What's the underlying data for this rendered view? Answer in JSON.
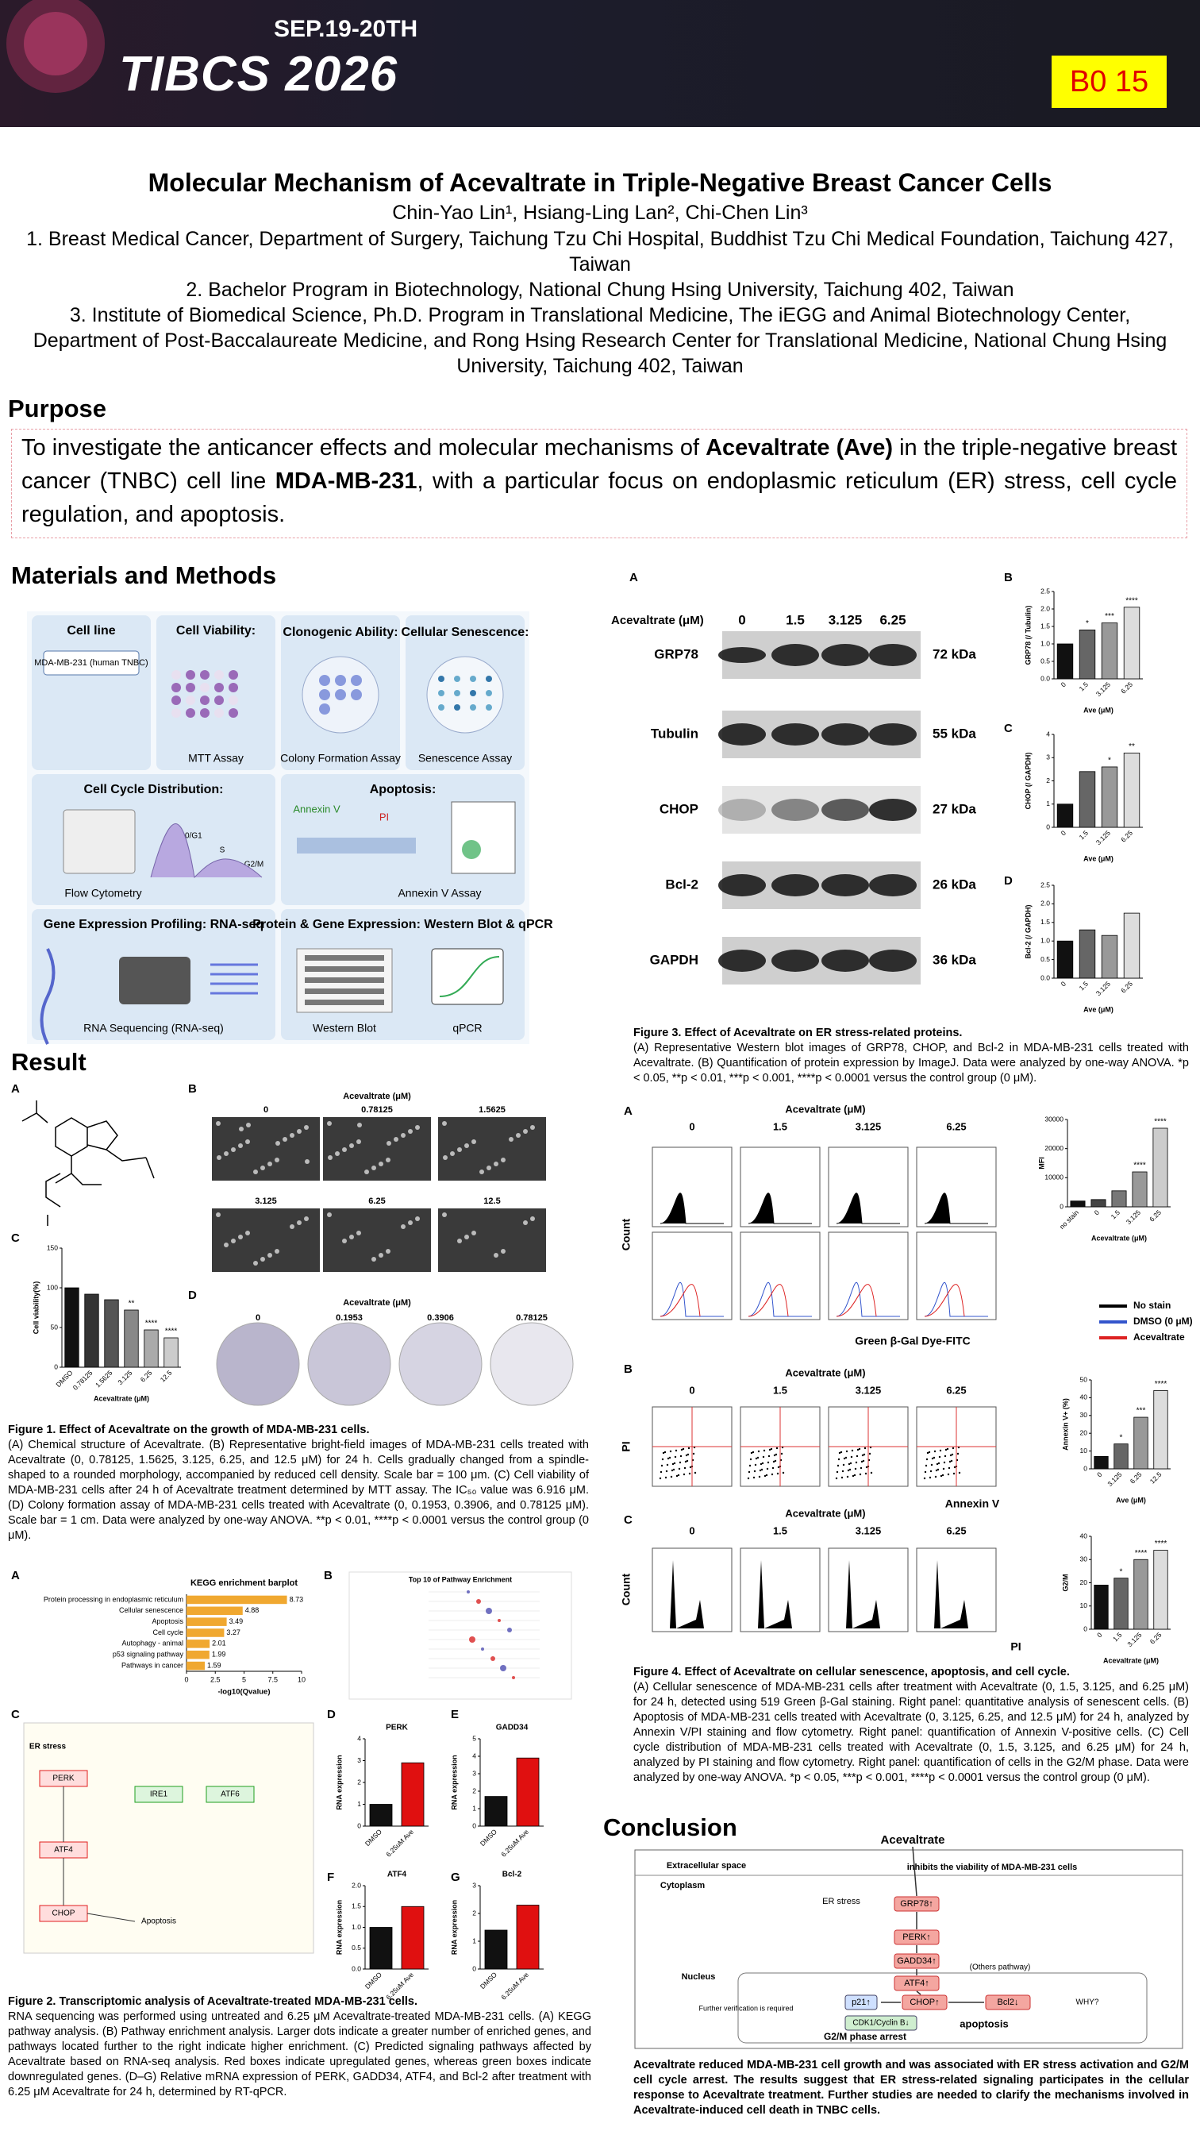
{
  "header": {
    "date": "SEP.19-20TH",
    "event": "TIBCS 2026",
    "badge": "B0 15"
  },
  "title": "Molecular Mechanism of Acevaltrate in Triple-Negative Breast Cancer Cells",
  "authors": "Chin-Yao Lin¹, Hsiang-Ling Lan², Chi-Chen Lin³",
  "affiliations": [
    "1. Breast Medical Cancer, Department of Surgery, Taichung Tzu Chi Hospital, Buddhist Tzu Chi Medical Foundation, Taichung 427, Taiwan",
    "2. Bachelor Program in Biotechnology, National Chung Hsing University, Taichung 402, Taiwan",
    "3. Institute of Biomedical Science, Ph.D. Program in Translational Medicine, The iEGG and Animal Biotechnology Center, Department of Post-Baccalaureate Medicine, and Rong Hsing Research Center for Translational Medicine, National Chung Hsing University, Taichung 402, Taiwan"
  ],
  "purpose": {
    "heading": "Purpose",
    "text": [
      "To investigate the anticancer effects and molecular mechanisms of ",
      "Acevaltrate (Ave)",
      " in the triple-negative breast cancer (TNBC) cell line ",
      "MDA-MB-231",
      ", with a particular focus on endoplasmic reticulum (ER) stress, cell cycle regulation, and apoptosis."
    ]
  },
  "methods": {
    "heading": "Materials and Methods",
    "panels": [
      {
        "title": "Cell line",
        "items": [
          "MDA-MB-231 (human TNBC)"
        ]
      },
      {
        "title": "Cell Viability:",
        "items": [
          "MTT Assay"
        ]
      },
      {
        "title": "Clonogenic Ability:",
        "items": [
          "Colony Formation Assay"
        ]
      },
      {
        "title": "Cellular Senescence:",
        "items": [
          "Senescence Assay"
        ]
      },
      {
        "title": "Cell Cycle Distribution:",
        "items": [
          "Flow Cytometry",
          "G0/G1",
          "S",
          "G2/M"
        ]
      },
      {
        "title": "Apoptosis:",
        "items": [
          "Annexin V Assay",
          "Annexin V",
          "PI"
        ]
      },
      {
        "title": "Gene Expression Profiling: RNA-seq",
        "items": [
          "RNA Sequencing (RNA-seq)"
        ]
      },
      {
        "title": "Protein & Gene Expression: Western Blot & qPCR",
        "items": [
          "Western Blot",
          "qPCR"
        ]
      }
    ]
  },
  "result": {
    "heading": "Result"
  },
  "fig1": {
    "letters": [
      "A",
      "B",
      "C",
      "D"
    ],
    "b_axis": "Acevaltrate (μM)",
    "b_doses": [
      "0",
      "0.78125",
      "1.5625",
      "3.125",
      "6.25",
      "12.5"
    ],
    "d_axis": "Acevaltrate (μM)",
    "d_doses": [
      "0",
      "0.1953",
      "0.3906",
      "0.78125"
    ],
    "caption_title": "Figure 1. Effect of Acevaltrate on the growth of MDA-MB-231 cells.",
    "caption": "(A) Chemical structure of Acevaltrate. (B) Representative bright-field images of MDA-MB-231 cells treated with Acevaltrate (0, 0.78125, 1.5625, 3.125, 6.25, and 12.5 μM) for 24 h. Cells gradually changed from a spindle-shaped to a rounded morphology, accompanied by reduced cell density. Scale bar = 100 μm. (C) Cell viability of MDA-MB-231 cells after 24 h of Acevaltrate treatment determined by MTT assay. The IC₅₀ value was 6.916 μM. (D) Colony formation assay of MDA-MB-231 cells treated with Acevaltrate (0, 0.1953, 0.3906, and 0.78125 μM). Scale bar = 1 cm. Data were analyzed by one-way ANOVA. **p < 0.01, ****p < 0.0001 versus the control group (0 μM)."
  },
  "fig2": {
    "letters": [
      "A",
      "B",
      "C",
      "D",
      "E",
      "F",
      "G"
    ],
    "b_title": "Top 10 of Pathway Enrichment",
    "c_labels": [
      "ER stress",
      "PERK",
      "IRE1",
      "ATF6",
      "ATF4",
      "CHOP",
      "Apoptosis"
    ],
    "caption_title": "Figure 2. Transcriptomic analysis of Acevaltrate-treated MDA-MB-231 cells.",
    "caption": "RNA sequencing was performed using untreated and 6.25 μM Acevaltrate-treated MDA-MB-231 cells. (A) KEGG pathway analysis. (B) Pathway enrichment analysis. Larger dots indicate a greater number of enriched genes, and pathways located further to the right indicate higher enrichment. (C) Predicted signaling pathways affected by Acevaltrate based on RNA-seq analysis. Red boxes indicate upregulated genes, whereas green boxes indicate downregulated genes. (D–G) Relative mRNA expression of PERK, GADD34, ATF4, and Bcl-2 after treatment with 6.25 μM Acevaltrate for 24 h, determined by RT-qPCR."
  },
  "fig3": {
    "letters": [
      "A",
      "B",
      "C",
      "D"
    ],
    "axis": "Acevaltrate (μM)",
    "doses": [
      "0",
      "1.5",
      "3.125",
      "6.25"
    ],
    "proteins": [
      "GRP78",
      "Tubulin",
      "CHOP",
      "Bcl-2",
      "GAPDH"
    ],
    "sizes": [
      "72 kDa",
      "55 kDa",
      "27 kDa",
      "26 kDa",
      "36 kDa"
    ],
    "caption_title": "Figure 3. Effect of Acevaltrate on ER stress-related proteins.",
    "caption": "(A) Representative Western blot images of GRP78, CHOP, and Bcl-2 in MDA-MB-231 cells treated with Acevaltrate. (B) Quantification of protein expression by ImageJ. Data were analyzed by one-way ANOVA. *p < 0.05, **p < 0.01, ***p < 0.001, ****p < 0.0001 versus the control group (0 μM)."
  },
  "fig4": {
    "letters": [
      "A",
      "B",
      "C"
    ],
    "axis": "Acevaltrate (μM)",
    "doses": [
      "0",
      "1.5",
      "3.125",
      "6.25"
    ],
    "ylabels": [
      "Count",
      "PI",
      "Count"
    ],
    "xlabels": [
      "Green β-Gal Dye-FITC",
      "Annexin V",
      "PI"
    ],
    "legend": [
      "No stain",
      "DMSO (0 μM)",
      "Acevaltrate"
    ],
    "caption_title": "Figure 4. Effect of Acevaltrate on cellular senescence, apoptosis, and cell cycle.",
    "caption": "(A) Cellular senescence of MDA-MB-231 cells after treatment with Acevaltrate (0, 1.5, 3.125, and 6.25 μM) for 24 h, detected using 519 Green β-Gal staining. Right panel: quantitative analysis of senescent cells. (B) Apoptosis of MDA-MB-231 cells treated with Acevaltrate (0, 3.125, 6.25, and 12.5 μM) for 24 h, analyzed by Annexin V/PI staining and flow cytometry. Right panel: quantification of Annexin V-positive cells. (C) Cell cycle distribution of MDA-MB-231 cells treated with Acevaltrate (0, 1.5, 3.125, and 6.25 μM) for 24 h, analyzed by PI staining and flow cytometry. Right panel: quantification of cells in the G2/M phase. Data were analyzed by one-way ANOVA. *p < 0.05, ***p < 0.001, ****p < 0.0001 versus the control group (0 μM)."
  },
  "conclusion": {
    "heading": "Conclusion",
    "labels": [
      "Acevaltrate",
      "Extracellular space",
      "inhibits the viability of MDA-MB-231 cells",
      "Cytoplasm",
      "ER stress",
      "GRP78↑",
      "PERK↑",
      "GADD34↑",
      "ATF4↑",
      "Nucleus",
      "CHOP↑",
      "Bcl2↓",
      "p21↑",
      "CDK1/Cyclin B↓",
      "G2/M phase arrest",
      "apoptosis",
      "Further verification is required",
      "(Others pathway)",
      "WHY?"
    ],
    "text": "Acevaltrate reduced MDA-MB-231 cell growth and was associated with ER stress activation and G2/M cell cycle arrest. The results suggest that ER stress-related signaling participates in the cellular response to Acevaltrate treatment. Further studies are needed to clarify the mechanisms involved in Acevaltrate-induced cell death in TNBC cells."
  },
  "chart_data": [
    {
      "type": "bar",
      "ylabel": "Cell viability(%)",
      "xlabel": "Acevaltrate (μM)",
      "categories": [
        "DMSO",
        "0.78125",
        "1.5625",
        "3.125",
        "6.25",
        "12.5"
      ],
      "values": [
        100,
        92,
        85,
        72,
        47,
        37
      ],
      "annotations": [
        null,
        null,
        null,
        "**",
        "****",
        "****"
      ],
      "colors": [
        "#111111",
        "#333333",
        "#555555",
        "#888888",
        "#aaaaaa",
        "#cccccc"
      ],
      "ylim": [
        0,
        150
      ],
      "yticks": [
        0,
        50,
        100,
        150
      ]
    },
    {
      "type": "bar",
      "ylabel": "GRP78 (/ Tubulin)",
      "xlabel": "Ave (μM)",
      "categories": [
        "0",
        "1.5",
        "3.125",
        "6.25"
      ],
      "values": [
        1.0,
        1.4,
        1.6,
        2.05
      ],
      "annotations": [
        null,
        "*",
        "***",
        "****"
      ],
      "colors": [
        "#111111",
        "#666666",
        "#999999",
        "#dddddd"
      ],
      "ylim": [
        0,
        2.5
      ],
      "yticks": [
        {
          "value": 0,
          "label": "0.0"
        },
        0.5,
        {
          "value": 1,
          "label": "1.0"
        },
        1.5,
        {
          "value": 2,
          "label": "2.0"
        },
        2.5
      ]
    },
    {
      "type": "bar",
      "ylabel": "CHOP (/ GAPDH)",
      "xlabel": "Ave (μM)",
      "categories": [
        "0",
        "1.5",
        "3.125",
        "6.25"
      ],
      "values": [
        1.0,
        2.4,
        2.6,
        3.2
      ],
      "annotations": [
        null,
        null,
        "*",
        "**"
      ],
      "colors": [
        "#111111",
        "#666666",
        "#999999",
        "#dddddd"
      ],
      "ylim": [
        0,
        4
      ],
      "yticks": [
        0,
        1,
        2,
        3,
        4
      ]
    },
    {
      "type": "bar",
      "ylabel": "Bcl-2 (/ GAPDH)",
      "xlabel": "Ave (μM)",
      "categories": [
        "0",
        "1.5",
        "3.125",
        "6.25"
      ],
      "values": [
        1.0,
        1.3,
        1.15,
        1.75
      ],
      "colors": [
        "#111111",
        "#666666",
        "#999999",
        "#dddddd"
      ],
      "ylim": [
        0,
        2.5
      ],
      "yticks": [
        {
          "value": 0,
          "label": "0.0"
        },
        0.5,
        {
          "value": 1,
          "label": "1.0"
        },
        1.5,
        {
          "value": 2,
          "label": "2.0"
        },
        2.5
      ]
    },
    {
      "type": "hbar",
      "title": "KEGG enrichment barplot",
      "xlabel": "-log10(Qvalue)",
      "categories": [
        "Protein processing in endoplasmic reticulum",
        "Cellular senescence",
        "Apoptosis",
        "Cell cycle",
        "Autophagy - animal",
        "p53 signaling pathway",
        "Pathways in cancer"
      ],
      "values": [
        8.73,
        4.88,
        3.49,
        3.27,
        2.01,
        1.99,
        1.59
      ],
      "color": "#f0a830",
      "xlim": [
        0,
        10
      ],
      "xticks": [
        0,
        2.5,
        5,
        7.5,
        10
      ]
    },
    {
      "type": "bar",
      "title": "PERK",
      "ylabel": "RNA expression",
      "categories": [
        "DMSO",
        "6.25uM Ave"
      ],
      "values": [
        1.0,
        2.9
      ],
      "colors": [
        "#111111",
        "#e01010"
      ],
      "ylim": [
        0,
        4
      ],
      "yticks": [
        0,
        1,
        2,
        3,
        4
      ]
    },
    {
      "type": "bar",
      "title": "GADD34",
      "ylabel": "RNA expression",
      "categories": [
        "DMSO",
        "6.25uM Ave"
      ],
      "values": [
        1.7,
        3.9
      ],
      "colors": [
        "#111111",
        "#e01010"
      ],
      "ylim": [
        0,
        5
      ],
      "yticks": [
        0,
        1,
        2,
        3,
        4,
        5
      ]
    },
    {
      "type": "bar",
      "title": "ATF4",
      "ylabel": "RNA expression",
      "categories": [
        "DMSO",
        "6.25uM Ave"
      ],
      "values": [
        1.0,
        1.5
      ],
      "colors": [
        "#111111",
        "#e01010"
      ],
      "ylim": [
        0,
        2
      ],
      "yticks": [
        {
          "value": 0,
          "label": "0.0"
        },
        0.5,
        {
          "value": 1,
          "label": "1.0"
        },
        1.5,
        {
          "value": 2,
          "label": "2.0"
        }
      ]
    },
    {
      "type": "bar",
      "title": "Bcl-2",
      "ylabel": "RNA expression",
      "categories": [
        "DMSO",
        "6.25uM Ave"
      ],
      "values": [
        1.4,
        2.3
      ],
      "colors": [
        "#111111",
        "#e01010"
      ],
      "ylim": [
        0,
        3
      ],
      "yticks": [
        0,
        1,
        2,
        3
      ]
    },
    {
      "type": "bar",
      "ylabel": "MFI",
      "xlabel": "Acevaltrate (μM)",
      "categories": [
        "no stain",
        "0",
        "1.5",
        "3.125",
        "6.25"
      ],
      "values": [
        2000,
        2500,
        5500,
        12000,
        27000
      ],
      "annotations": [
        null,
        null,
        null,
        "****",
        "****"
      ],
      "colors": [
        "#111111",
        "#444444",
        "#777777",
        "#999999",
        "#cccccc"
      ],
      "ylim": [
        0,
        30000
      ],
      "yticks": [
        0,
        10000,
        20000,
        30000
      ]
    },
    {
      "type": "bar",
      "ylabel": "Annexin V+ (%)",
      "xlabel": "Ave (μM)",
      "categories": [
        "0",
        "3.125",
        "6.25",
        "12.5"
      ],
      "values": [
        7,
        14,
        29,
        44
      ],
      "annotations": [
        null,
        "*",
        "***",
        "****"
      ],
      "colors": [
        "#111111",
        "#666666",
        "#999999",
        "#dddddd"
      ],
      "ylim": [
        0,
        50
      ],
      "yticks": [
        0,
        10,
        20,
        30,
        40,
        50
      ]
    },
    {
      "type": "bar",
      "ylabel": "G2/M",
      "xlabel": "Acevaltrate (μM)",
      "categories": [
        "0",
        "1.5",
        "3.125",
        "6.25"
      ],
      "values": [
        19,
        22,
        30,
        34
      ],
      "annotations": [
        null,
        "*",
        "****",
        "****"
      ],
      "colors": [
        "#111111",
        "#666666",
        "#999999",
        "#dddddd"
      ],
      "ylim": [
        0,
        40
      ],
      "yticks": [
        0,
        10,
        20,
        30,
        40
      ]
    }
  ]
}
